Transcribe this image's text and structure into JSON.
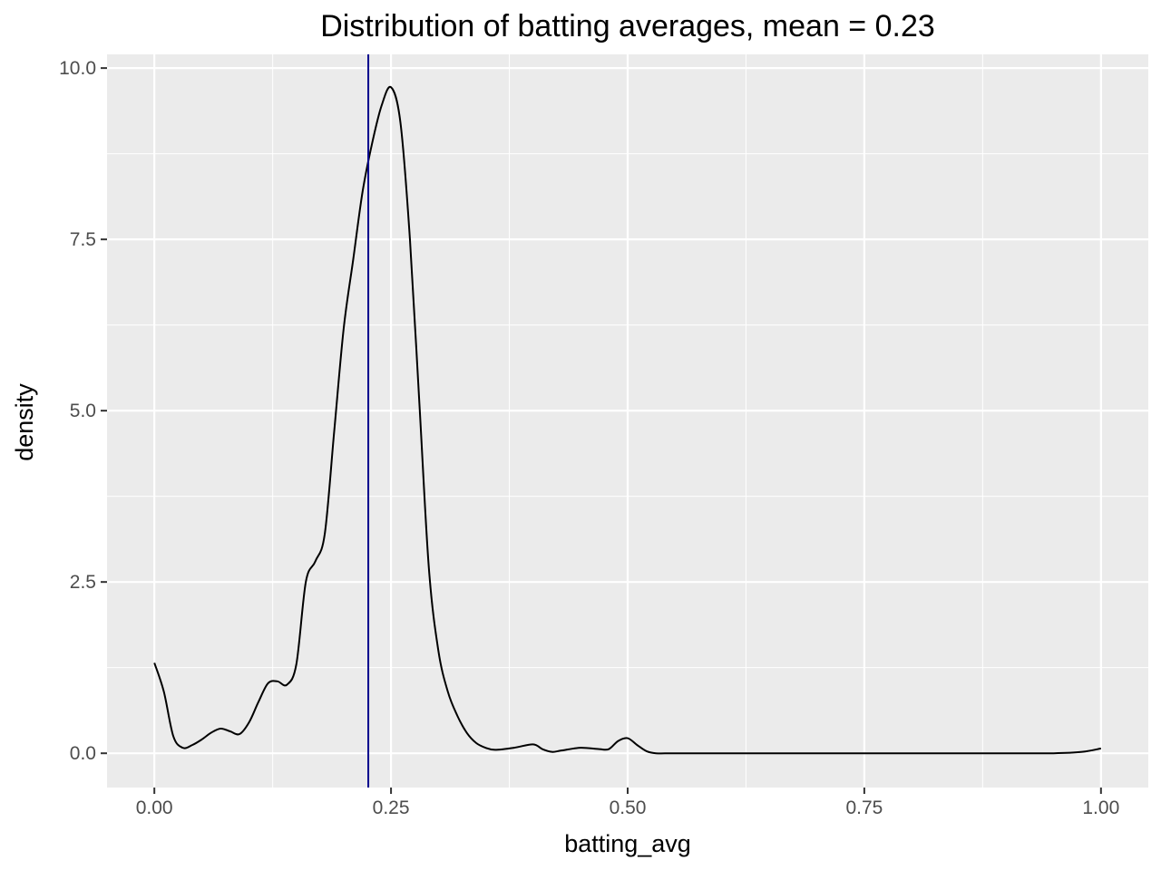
{
  "chart_data": {
    "type": "line",
    "title": "Distribution of batting averages, mean = 0.23",
    "xlabel": "batting_avg",
    "ylabel": "density",
    "xlim": [
      -0.05,
      1.05
    ],
    "ylim": [
      -0.5,
      10.2
    ],
    "x_ticks": [
      0.0,
      0.25,
      0.5,
      0.75,
      1.0
    ],
    "x_tick_labels": [
      "0.00",
      "0.25",
      "0.50",
      "0.75",
      "1.00"
    ],
    "y_ticks": [
      0.0,
      2.5,
      5.0,
      7.5,
      10.0
    ],
    "y_tick_labels": [
      "0.0",
      "2.5",
      "5.0",
      "7.5",
      "10.0"
    ],
    "grid": true,
    "mean_line": {
      "x": 0.226,
      "color": "#00008b"
    },
    "series": [
      {
        "color": "#000000",
        "x": [
          0.0,
          0.01,
          0.02,
          0.03,
          0.04,
          0.05,
          0.06,
          0.07,
          0.08,
          0.09,
          0.1,
          0.11,
          0.12,
          0.13,
          0.14,
          0.15,
          0.16,
          0.17,
          0.18,
          0.19,
          0.2,
          0.21,
          0.22,
          0.23,
          0.24,
          0.25,
          0.26,
          0.27,
          0.28,
          0.29,
          0.3,
          0.31,
          0.32,
          0.33,
          0.34,
          0.35,
          0.36,
          0.38,
          0.4,
          0.41,
          0.42,
          0.43,
          0.45,
          0.47,
          0.48,
          0.49,
          0.5,
          0.51,
          0.52,
          0.53,
          0.55,
          0.6,
          0.7,
          0.8,
          0.9,
          0.95,
          0.98,
          1.0
        ],
        "y": [
          1.32,
          0.9,
          0.25,
          0.08,
          0.12,
          0.2,
          0.3,
          0.36,
          0.32,
          0.28,
          0.45,
          0.75,
          1.02,
          1.05,
          1.0,
          1.3,
          2.5,
          2.8,
          3.2,
          4.7,
          6.2,
          7.2,
          8.2,
          8.9,
          9.45,
          9.72,
          9.2,
          7.5,
          5.1,
          2.7,
          1.5,
          0.9,
          0.55,
          0.3,
          0.15,
          0.08,
          0.05,
          0.08,
          0.13,
          0.06,
          0.02,
          0.04,
          0.08,
          0.06,
          0.06,
          0.18,
          0.22,
          0.12,
          0.03,
          0.0,
          0.0,
          0.0,
          0.0,
          0.0,
          0.0,
          0.0,
          0.02,
          0.07
        ]
      }
    ]
  }
}
